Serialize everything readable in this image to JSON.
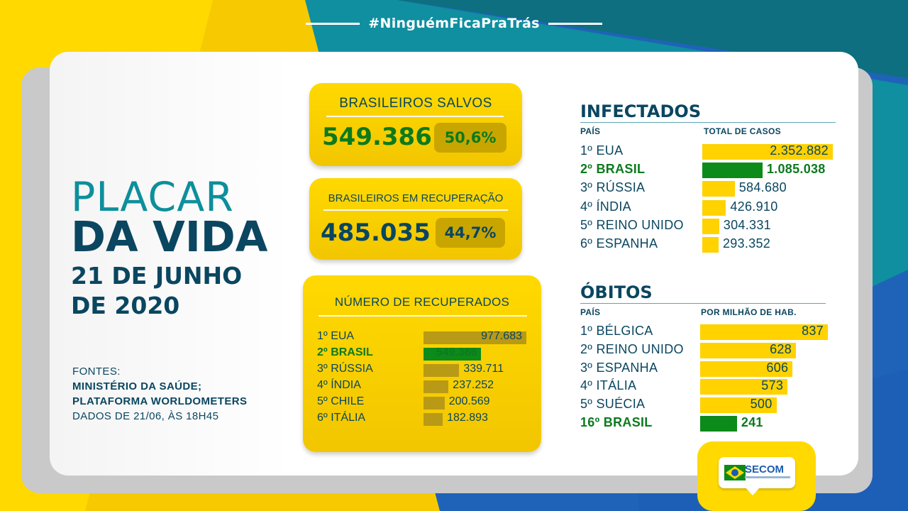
{
  "header": {
    "hashtag": "#NinguémFicaPraTrás"
  },
  "title": {
    "line1": "PLACAR",
    "line2": "DA VIDA",
    "date_line1": "21 DE JUNHO",
    "date_line2": "DE 2020"
  },
  "sources": {
    "label": "FONTES:",
    "line1": "MINISTÉRIO DA SAÚDE;",
    "line2": "PLATAFORMA WORLDOMETERS",
    "line3": "DADOS DE 21/06, ÀS 18H45"
  },
  "saved": {
    "title": "BRASILEIROS SALVOS",
    "value": "549.386",
    "percent": "50,6%"
  },
  "recovering": {
    "title": "BRASILEIROS EM RECUPERAÇÃO",
    "value": "485.035",
    "percent": "44,7%"
  },
  "recovered": {
    "title": "NÚMERO DE RECUPERADOS",
    "rows": [
      {
        "label": "1º EUA",
        "value": "977.683",
        "amount": 977683,
        "highlight": false
      },
      {
        "label": "2º BRASIL",
        "value": "549.386",
        "amount": 549386,
        "highlight": true
      },
      {
        "label": "3º RÚSSIA",
        "value": "339.711",
        "amount": 339711,
        "highlight": false
      },
      {
        "label": "4º ÍNDIA",
        "value": "237.252",
        "amount": 237252,
        "highlight": false
      },
      {
        "label": "5º CHILE",
        "value": "200.569",
        "amount": 200569,
        "highlight": false
      },
      {
        "label": "6º ITÁLIA",
        "value": "182.893",
        "amount": 182893,
        "highlight": false
      }
    ]
  },
  "infected": {
    "title": "INFECTADOS",
    "col1": "PAÍS",
    "col2": "TOTAL DE CASOS",
    "rows": [
      {
        "label": "1º EUA",
        "value": "2.352.882",
        "amount": 2352882,
        "highlight": false
      },
      {
        "label": "2º BRASIL",
        "value": "1.085.038",
        "amount": 1085038,
        "highlight": true
      },
      {
        "label": "3º RÚSSIA",
        "value": "584.680",
        "amount": 584680,
        "highlight": false
      },
      {
        "label": "4º ÍNDIA",
        "value": "426.910",
        "amount": 426910,
        "highlight": false
      },
      {
        "label": "5º REINO UNIDO",
        "value": "304.331",
        "amount": 304331,
        "highlight": false
      },
      {
        "label": "6º ESPANHA",
        "value": "293.352",
        "amount": 293352,
        "highlight": false
      }
    ]
  },
  "deaths": {
    "title": "ÓBITOS",
    "col1": "PAÍS",
    "col2": "POR MILHÃO DE HAB.",
    "rows": [
      {
        "label": "1º BÉLGICA",
        "value": "837",
        "amount": 837,
        "highlight": false
      },
      {
        "label": "2º REINO UNIDO",
        "value": "628",
        "amount": 628,
        "highlight": false
      },
      {
        "label": "3º ESPANHA",
        "value": "606",
        "amount": 606,
        "highlight": false
      },
      {
        "label": "4º ITÁLIA",
        "value": "573",
        "amount": 573,
        "highlight": false
      },
      {
        "label": "5º SUÉCIA",
        "value": "500",
        "amount": 500,
        "highlight": false
      },
      {
        "label": "16º BRASIL",
        "value": "241",
        "amount": 241,
        "highlight": true
      }
    ]
  },
  "logo": {
    "text": "SECOM"
  },
  "colors": {
    "yellow": "#ffd900",
    "green": "#0c8a1a",
    "navy": "#0a4660",
    "teal": "#0d8f9c",
    "blue": "#1b5db0"
  }
}
